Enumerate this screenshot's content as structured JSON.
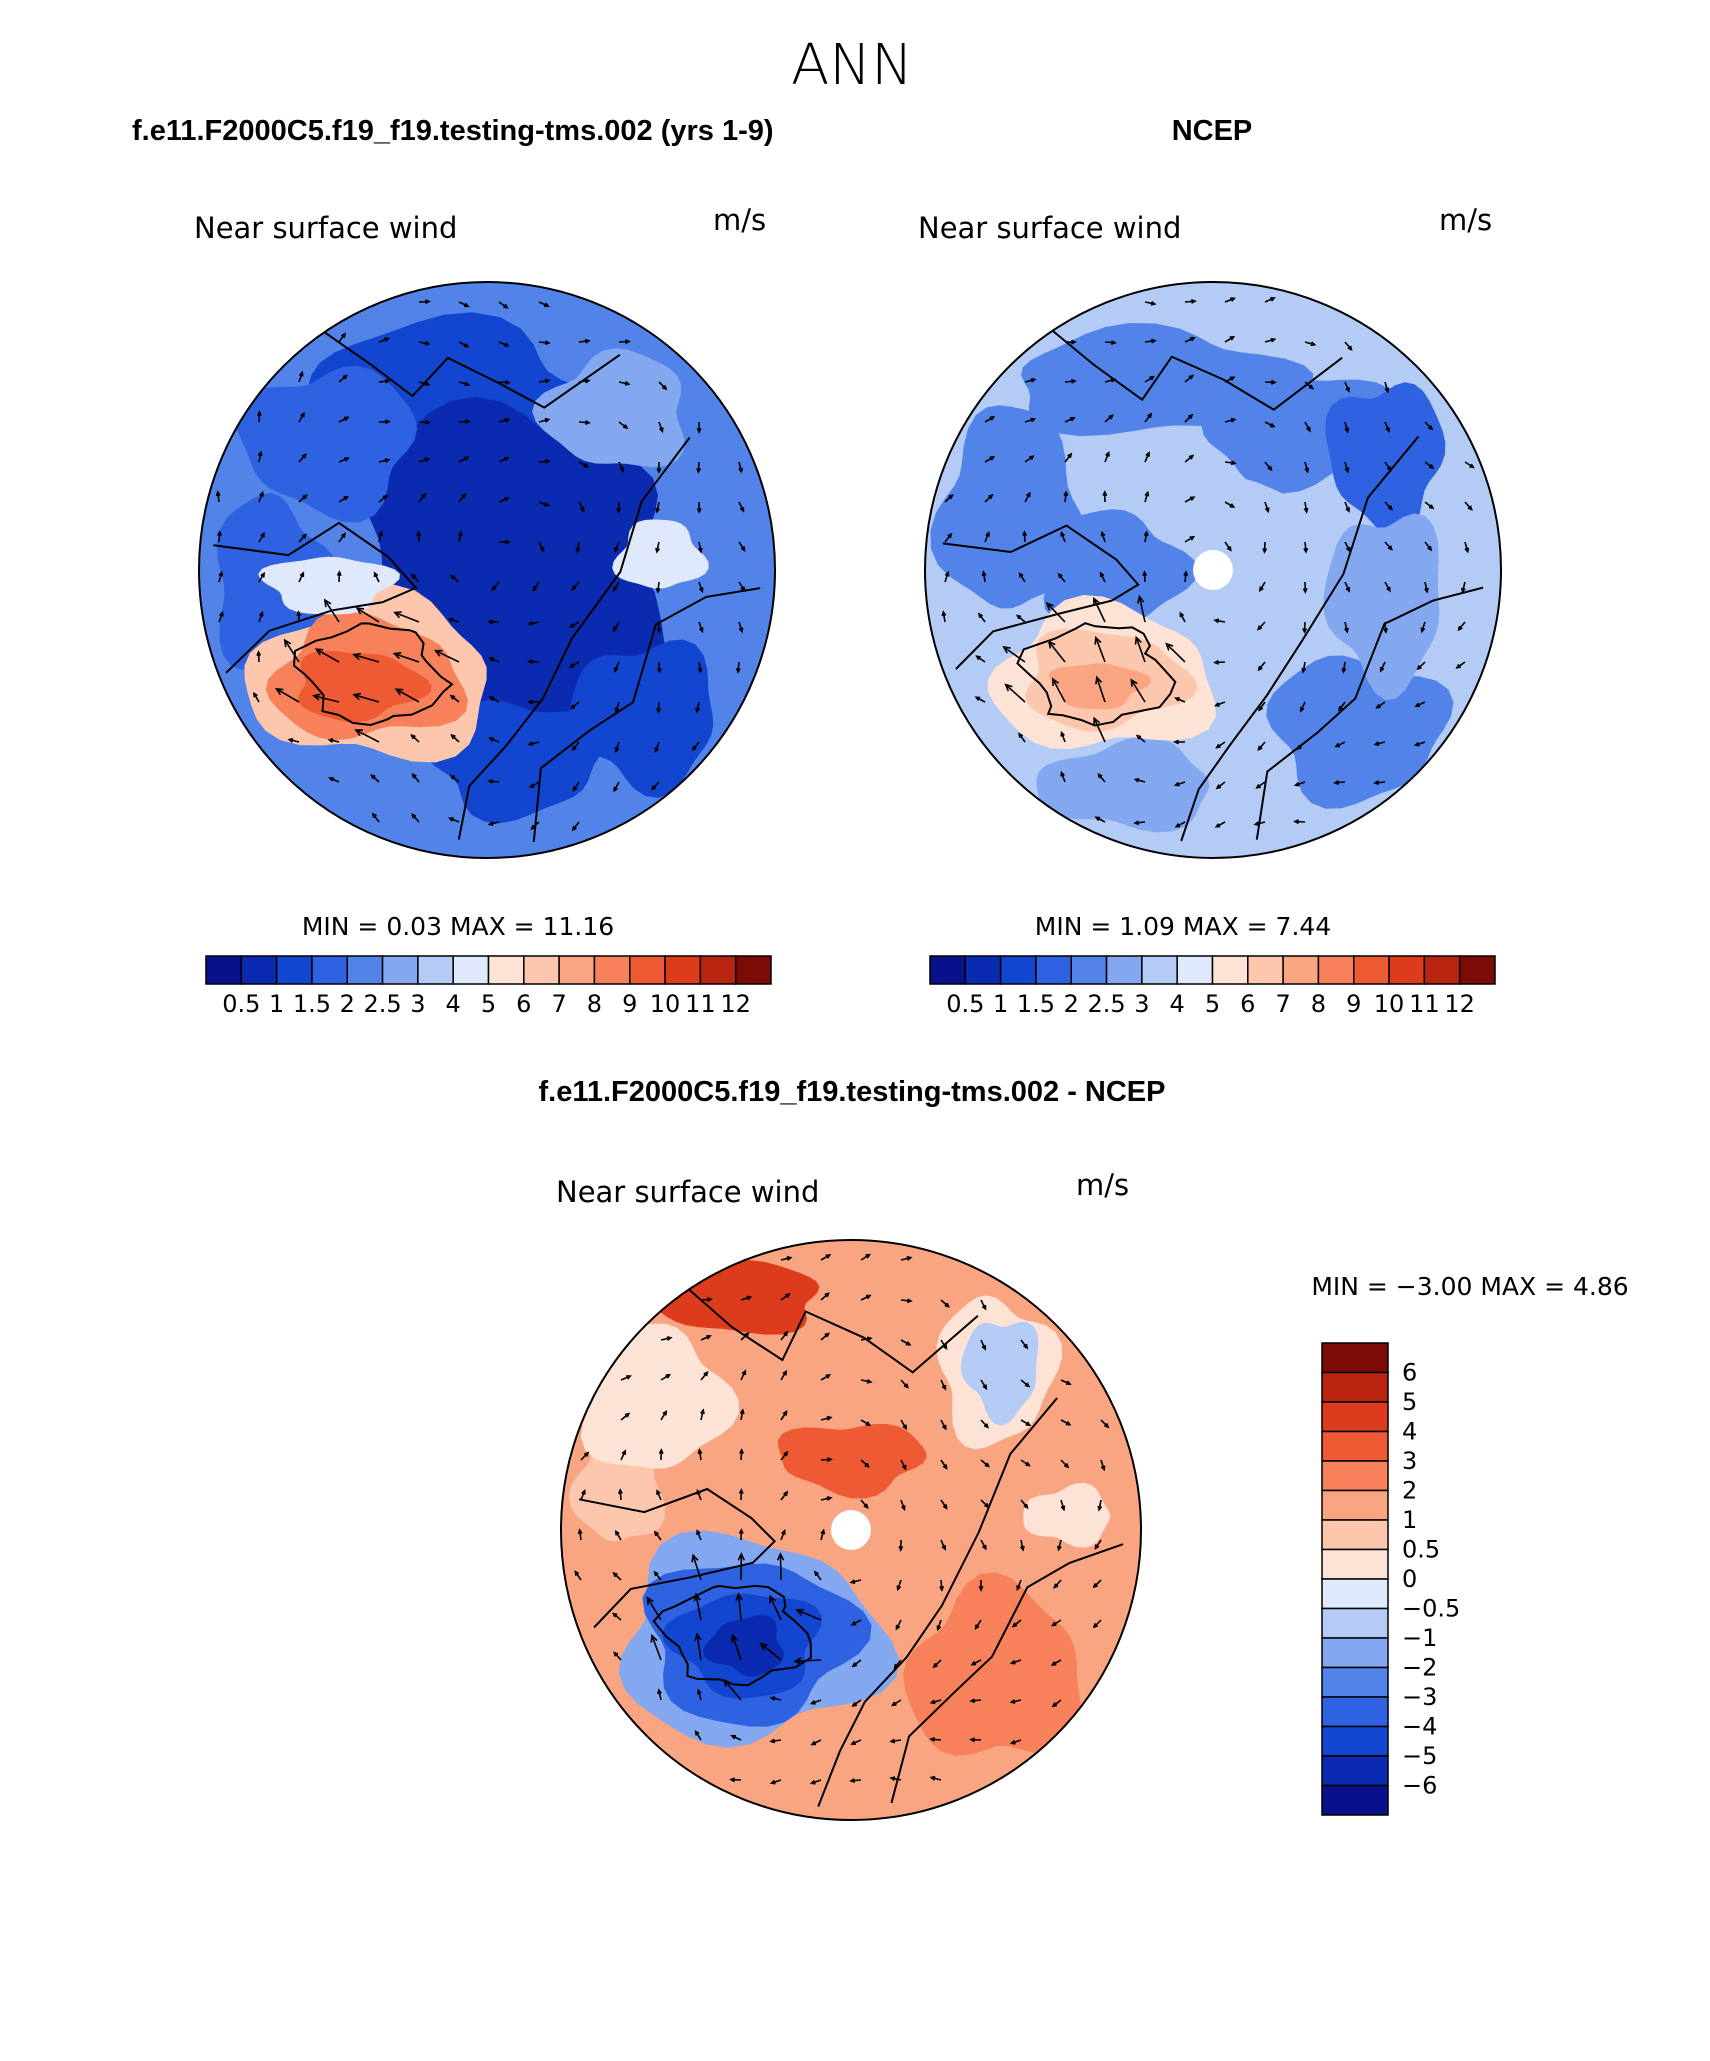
{
  "page": {
    "title": "ANN"
  },
  "panels": [
    {
      "id": "model",
      "heading": "f.e11.F2000C5.f19_f19.testing-tms.002 (yrs 1-9)",
      "variable": "Near surface wind",
      "units": "m/s",
      "stats_text": "MIN =    0.03 MAX =   11.16",
      "min": 0.03,
      "max": 11.16,
      "has_pole_hole": false,
      "colorbar": {
        "orientation": "horizontal",
        "labels": [
          "0.5",
          "1",
          "1.5",
          "2",
          "2.5",
          "3",
          "4",
          "5",
          "6",
          "7",
          "8",
          "9",
          "10",
          "11",
          "12"
        ],
        "colors": [
          "#08108c",
          "#0a2bb0",
          "#1346d0",
          "#2f62e0",
          "#5283e8",
          "#83a8f0",
          "#b3cbf5",
          "#dfe9fb",
          "#fde3d5",
          "#fcc7ad",
          "#f9a582",
          "#f6815a",
          "#ee5a34",
          "#dc3b1c",
          "#b8240f",
          "#7c0a05"
        ]
      }
    },
    {
      "id": "obs",
      "heading": "NCEP",
      "variable": "Near surface wind",
      "units": "m/s",
      "stats_text": "MIN =    1.09 MAX =    7.44",
      "min": 1.09,
      "max": 7.44,
      "has_pole_hole": true,
      "colorbar": {
        "orientation": "horizontal",
        "labels": [
          "0.5",
          "1",
          "1.5",
          "2",
          "2.5",
          "3",
          "4",
          "5",
          "6",
          "7",
          "8",
          "9",
          "10",
          "11",
          "12"
        ],
        "colors": [
          "#08108c",
          "#0a2bb0",
          "#1346d0",
          "#2f62e0",
          "#5283e8",
          "#83a8f0",
          "#b3cbf5",
          "#dfe9fb",
          "#fde3d5",
          "#fcc7ad",
          "#f9a582",
          "#f6815a",
          "#ee5a34",
          "#dc3b1c",
          "#b8240f",
          "#7c0a05"
        ]
      }
    },
    {
      "id": "diff",
      "heading": "f.e11.F2000C5.f19_f19.testing-tms.002 - NCEP",
      "variable": "Near surface wind",
      "units": "m/s",
      "stats_text": "MIN =  −3.00 MAX =    4.86",
      "min": -3.0,
      "max": 4.86,
      "has_pole_hole": true,
      "colorbar": {
        "orientation": "vertical",
        "labels": [
          "6",
          "5",
          "4",
          "3",
          "2",
          "1",
          "0.5",
          "0",
          "−0.5",
          "−1",
          "−2",
          "−3",
          "−4",
          "−5",
          "−6"
        ],
        "colors": [
          "#7c0a05",
          "#b8240f",
          "#dc3b1c",
          "#ee5a34",
          "#f6815a",
          "#f9a582",
          "#fcc7ad",
          "#fde3d5",
          "#dfe9fb",
          "#b3cbf5",
          "#83a8f0",
          "#5283e8",
          "#2f62e0",
          "#1346d0",
          "#0a2bb0",
          "#08108c"
        ]
      }
    }
  ]
}
